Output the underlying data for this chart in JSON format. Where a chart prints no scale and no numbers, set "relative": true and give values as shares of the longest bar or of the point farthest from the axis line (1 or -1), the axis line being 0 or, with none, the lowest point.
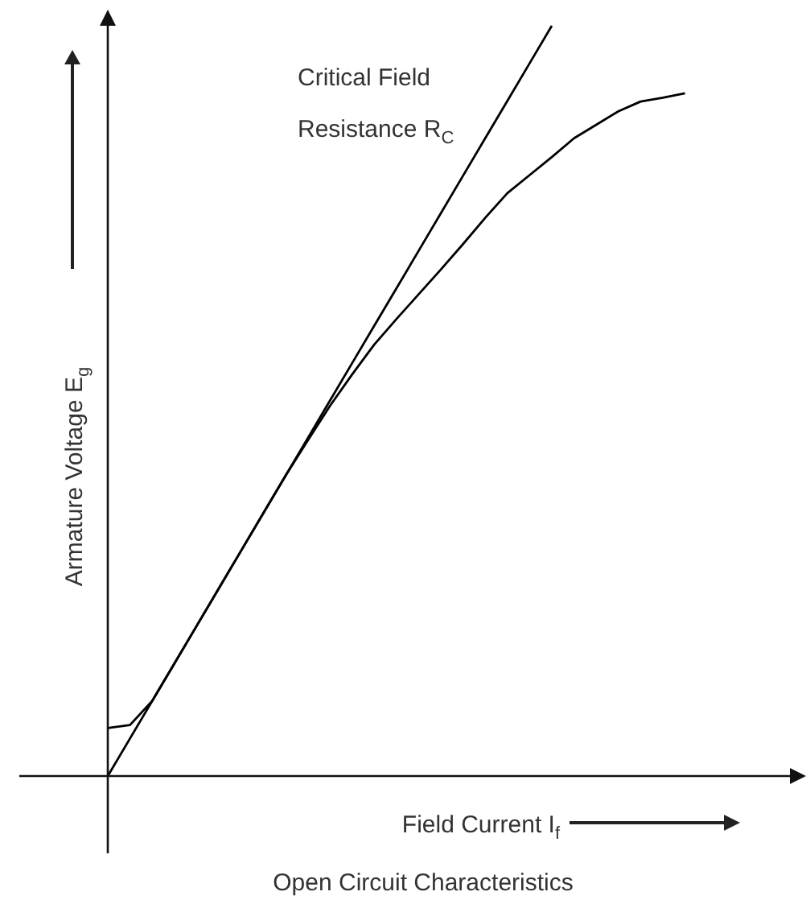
{
  "chart_data": {
    "type": "line",
    "title": "Open Circuit Characteristics",
    "xlabel": "Field Current I$_{f}$",
    "ylabel": "Armature Voltage E$_{g}$",
    "relative": true,
    "legend": false,
    "marker": "none",
    "categories": [
      null,
      null,
      null,
      null,
      null,
      null,
      null,
      null,
      null,
      null,
      null,
      null,
      null,
      null,
      null,
      null,
      null,
      null,
      null,
      null,
      null,
      null,
      null,
      null,
      null,
      null,
      null
    ],
    "series": [
      {
        "name": "Critical Field Resistance R$_{C}$",
        "color": "#000000",
        "values": [
          0,
          0.05,
          0.1,
          0.15,
          0.2,
          0.25,
          0.3,
          0.35,
          0.4,
          0.45,
          0.5,
          0.55,
          0.6,
          0.65,
          0.7,
          0.75,
          0.8,
          0.85,
          0.9,
          0.95,
          1,
          null,
          null,
          null,
          null,
          null,
          null
        ]
      },
      {
        "color": "#000000",
        "values": [
          0.064,
          0.068,
          0.1,
          0.15,
          0.2,
          0.25,
          0.3,
          0.35,
          0.4,
          0.447,
          0.493,
          0.535,
          0.575,
          0.609,
          0.642,
          0.675,
          0.709,
          0.744,
          0.777,
          0.801,
          0.825,
          0.85,
          0.868,
          0.886,
          0.899,
          0.904,
          0.91
        ]
      }
    ]
  }
}
